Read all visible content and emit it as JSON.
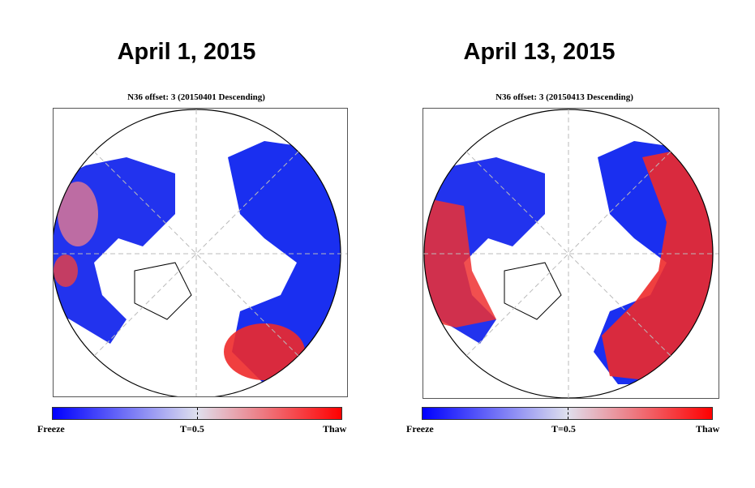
{
  "panels": [
    {
      "date": "April 1, 2015",
      "subtitle": "N36 offset: 3 (20150401 Descending)",
      "thaw_extent": "low"
    },
    {
      "date": "April 13, 2015",
      "subtitle": "N36 offset: 3 (20150413 Descending)",
      "thaw_extent": "high"
    }
  ],
  "colorbar": {
    "min_label": "Freeze",
    "mid_label": "T=0.5",
    "max_label": "Thaw",
    "colors": {
      "freeze": "#0000ff",
      "mid": "#dfe0ee",
      "thaw": "#ff0000"
    }
  }
}
